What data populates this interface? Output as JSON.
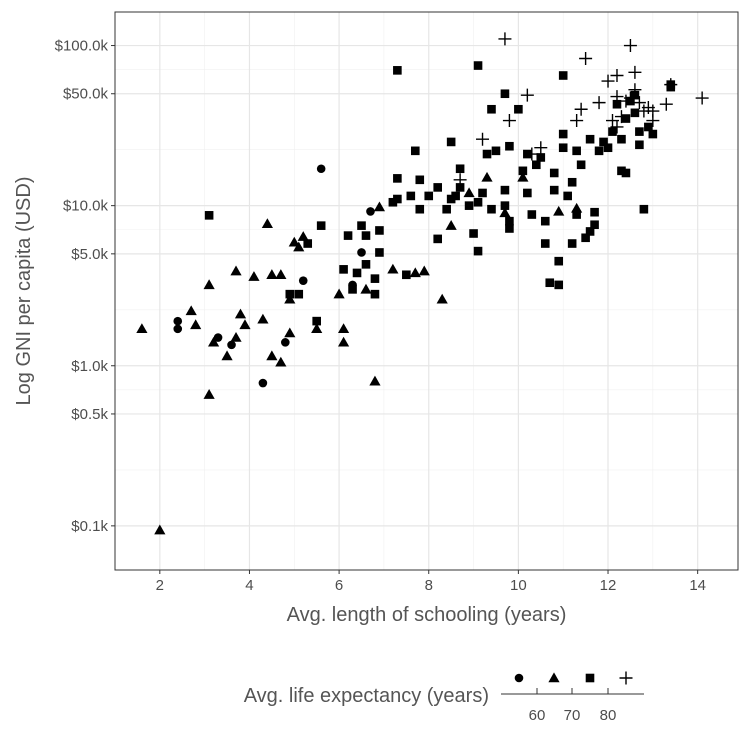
{
  "chart_data": {
    "type": "scatter",
    "title": "",
    "xlabel": "Avg. length of schooling (years)",
    "ylabel": "Log GNI per capita (USD)",
    "x_scale": "linear",
    "y_scale": "log10",
    "xlim": [
      1.0,
      14.9
    ],
    "ylim": [
      0.053,
      162
    ],
    "x_ticks": [
      2,
      4,
      6,
      8,
      10,
      12,
      14
    ],
    "x_tick_labels": [
      "2",
      "4",
      "6",
      "8",
      "10",
      "12",
      "14"
    ],
    "y_ticks": [
      0.1,
      0.5,
      1.0,
      5.0,
      10.0,
      50.0,
      100.0
    ],
    "y_tick_labels": [
      "$0.1k",
      "$0.5k",
      "$1.0k",
      "$5.0k",
      "$10.0k",
      "$50.0k",
      "$100.0k"
    ],
    "grid": true,
    "legend": {
      "title": "Avg. life expectancy (years)",
      "placement": "bottom",
      "shape_scale": [
        "circle",
        "triangle",
        "square",
        "cross"
      ],
      "bar_labels": [
        "60",
        "70",
        "80"
      ]
    },
    "series": [
      {
        "shape": "circle",
        "points": [
          [
            2.4,
            1.9
          ],
          [
            2.4,
            1.7
          ],
          [
            3.3,
            1.5
          ],
          [
            3.6,
            1.35
          ],
          [
            4.3,
            0.78
          ],
          [
            4.8,
            1.4
          ],
          [
            5.2,
            3.4
          ],
          [
            5.6,
            17.0
          ],
          [
            6.3,
            3.2
          ],
          [
            6.5,
            5.1
          ],
          [
            6.7,
            9.2
          ]
        ]
      },
      {
        "shape": "triangle",
        "points": [
          [
            1.6,
            1.7
          ],
          [
            2.0,
            0.094
          ],
          [
            2.7,
            2.2
          ],
          [
            2.8,
            1.8
          ],
          [
            3.1,
            0.66
          ],
          [
            3.1,
            3.2
          ],
          [
            3.2,
            1.4
          ],
          [
            3.5,
            1.15
          ],
          [
            3.7,
            1.5
          ],
          [
            3.7,
            3.9
          ],
          [
            3.8,
            2.1
          ],
          [
            3.9,
            1.8
          ],
          [
            4.1,
            3.6
          ],
          [
            4.3,
            1.95
          ],
          [
            4.4,
            7.7
          ],
          [
            4.5,
            1.15
          ],
          [
            4.5,
            3.7
          ],
          [
            4.7,
            1.05
          ],
          [
            4.7,
            3.7
          ],
          [
            4.9,
            1.6
          ],
          [
            4.9,
            2.6
          ],
          [
            5.0,
            5.9
          ],
          [
            5.1,
            5.5
          ],
          [
            5.2,
            6.4
          ],
          [
            5.5,
            1.7
          ],
          [
            6.0,
            2.8
          ],
          [
            6.1,
            1.7
          ],
          [
            6.1,
            1.4
          ],
          [
            6.6,
            3.0
          ],
          [
            6.8,
            0.8
          ],
          [
            6.9,
            9.8
          ],
          [
            7.2,
            4.0
          ],
          [
            7.7,
            3.8
          ],
          [
            7.9,
            3.9
          ],
          [
            8.3,
            2.6
          ],
          [
            8.5,
            7.5
          ],
          [
            8.9,
            12.0
          ],
          [
            9.3,
            15.0
          ],
          [
            9.7,
            9.0
          ],
          [
            10.1,
            15.0
          ],
          [
            10.9,
            9.2
          ],
          [
            11.3,
            9.6
          ]
        ]
      },
      {
        "shape": "square",
        "points": [
          [
            3.1,
            8.7
          ],
          [
            4.9,
            2.8
          ],
          [
            5.1,
            2.8
          ],
          [
            5.3,
            5.8
          ],
          [
            5.5,
            1.9
          ],
          [
            5.6,
            7.5
          ],
          [
            6.1,
            4.0
          ],
          [
            6.2,
            6.5
          ],
          [
            6.3,
            3.0
          ],
          [
            6.4,
            3.8
          ],
          [
            6.5,
            7.5
          ],
          [
            6.6,
            4.3
          ],
          [
            6.6,
            6.5
          ],
          [
            6.8,
            2.8
          ],
          [
            6.8,
            3.5
          ],
          [
            6.9,
            5.1
          ],
          [
            6.9,
            7.0
          ],
          [
            7.2,
            10.5
          ],
          [
            7.3,
            11.0
          ],
          [
            7.3,
            14.8
          ],
          [
            7.3,
            70.0
          ],
          [
            7.5,
            3.7
          ],
          [
            7.6,
            11.5
          ],
          [
            7.7,
            22.0
          ],
          [
            7.8,
            9.5
          ],
          [
            7.8,
            14.5
          ],
          [
            8.0,
            11.5
          ],
          [
            8.2,
            6.2
          ],
          [
            8.2,
            13.0
          ],
          [
            8.4,
            9.5
          ],
          [
            8.5,
            11.0
          ],
          [
            8.5,
            25.0
          ],
          [
            8.6,
            11.5
          ],
          [
            8.7,
            13.0
          ],
          [
            8.7,
            17.0
          ],
          [
            8.9,
            10.0
          ],
          [
            9.0,
            6.7
          ],
          [
            9.1,
            5.2
          ],
          [
            9.1,
            10.5
          ],
          [
            9.1,
            75.0
          ],
          [
            9.2,
            12.0
          ],
          [
            9.3,
            21.0
          ],
          [
            9.4,
            9.5
          ],
          [
            9.4,
            40.0
          ],
          [
            9.5,
            22.0
          ],
          [
            9.7,
            10.0
          ],
          [
            9.7,
            12.5
          ],
          [
            9.7,
            50.0
          ],
          [
            9.8,
            7.2
          ],
          [
            9.8,
            8.0
          ],
          [
            9.8,
            23.5
          ],
          [
            10.0,
            40.0
          ],
          [
            10.1,
            16.5
          ],
          [
            10.2,
            12.0
          ],
          [
            10.2,
            21.0
          ],
          [
            10.3,
            8.8
          ],
          [
            10.4,
            18.0
          ],
          [
            10.5,
            20.0
          ],
          [
            10.6,
            5.8
          ],
          [
            10.6,
            8.0
          ],
          [
            10.7,
            3.3
          ],
          [
            10.8,
            12.5
          ],
          [
            10.8,
            16.0
          ],
          [
            10.9,
            3.2
          ],
          [
            10.9,
            4.5
          ],
          [
            11.0,
            23.0
          ],
          [
            11.0,
            28.0
          ],
          [
            11.0,
            65.0
          ],
          [
            11.1,
            11.5
          ],
          [
            11.2,
            5.8
          ],
          [
            11.2,
            14.0
          ],
          [
            11.3,
            8.8
          ],
          [
            11.3,
            22.0
          ],
          [
            11.4,
            18.0
          ],
          [
            11.5,
            6.3
          ],
          [
            11.6,
            6.9
          ],
          [
            11.6,
            26.0
          ],
          [
            11.7,
            7.6
          ],
          [
            11.7,
            9.1
          ],
          [
            11.8,
            22.0
          ],
          [
            11.9,
            25.0
          ],
          [
            12.0,
            23.0
          ],
          [
            12.1,
            29.0
          ],
          [
            12.2,
            43.0
          ],
          [
            12.3,
            26.0
          ],
          [
            12.3,
            16.5
          ],
          [
            12.4,
            35.0
          ],
          [
            12.4,
            16.0
          ],
          [
            12.5,
            45.0
          ],
          [
            12.6,
            49.0
          ],
          [
            12.6,
            38.0
          ],
          [
            12.7,
            29.0
          ],
          [
            12.7,
            24.0
          ],
          [
            12.8,
            9.5
          ],
          [
            12.9,
            31.0
          ],
          [
            13.0,
            28.0
          ],
          [
            13.4,
            55.0
          ],
          [
            13.4,
            57.0
          ]
        ]
      },
      {
        "shape": "cross",
        "points": [
          [
            8.7,
            14.5
          ],
          [
            9.2,
            26.0
          ],
          [
            9.7,
            110.0
          ],
          [
            9.8,
            34.0
          ],
          [
            10.2,
            49.0
          ],
          [
            10.3,
            21.0
          ],
          [
            10.5,
            23.0
          ],
          [
            11.3,
            34.0
          ],
          [
            11.4,
            40.0
          ],
          [
            11.5,
            83.0
          ],
          [
            11.8,
            44.0
          ],
          [
            12.0,
            60.0
          ],
          [
            12.1,
            34.0
          ],
          [
            12.2,
            31.0
          ],
          [
            12.2,
            48.0
          ],
          [
            12.2,
            65.0
          ],
          [
            12.3,
            36.0
          ],
          [
            12.4,
            45.0
          ],
          [
            12.5,
            47.0
          ],
          [
            12.5,
            100.0
          ],
          [
            12.6,
            68.0
          ],
          [
            12.6,
            53.0
          ],
          [
            12.7,
            44.0
          ],
          [
            12.8,
            39.0
          ],
          [
            12.9,
            41.0
          ],
          [
            13.0,
            39.0
          ],
          [
            13.0,
            34.0
          ],
          [
            13.3,
            43.0
          ],
          [
            13.4,
            57.0
          ],
          [
            14.1,
            47.0
          ]
        ]
      }
    ]
  }
}
